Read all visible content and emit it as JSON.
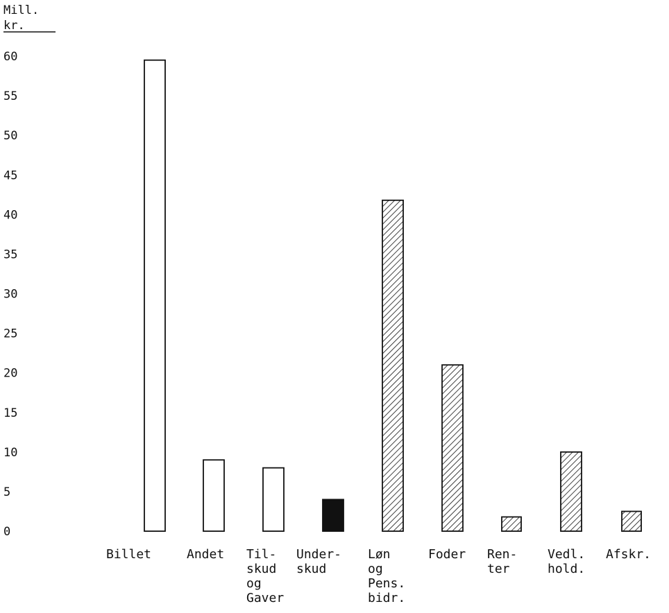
{
  "chart_data": {
    "type": "bar",
    "ylabel": [
      "Mill.",
      "kr."
    ],
    "ylim": [
      0,
      60
    ],
    "yticks": [
      0,
      5,
      10,
      15,
      20,
      25,
      30,
      35,
      40,
      45,
      50,
      55,
      60
    ],
    "grid": false,
    "categories": [
      {
        "lines": [
          "Billet"
        ],
        "value": 59.5,
        "fill": "white"
      },
      {
        "lines": [
          "Andet"
        ],
        "value": 9.0,
        "fill": "white"
      },
      {
        "lines": [
          "Til-",
          "skud",
          "og",
          "Gaver"
        ],
        "value": 8.0,
        "fill": "white"
      },
      {
        "lines": [
          "Under-",
          "skud"
        ],
        "value": 4.0,
        "fill": "black"
      },
      {
        "lines": [
          "Løn",
          "og",
          "Pens.",
          "bidr."
        ],
        "value": 41.8,
        "fill": "hatched"
      },
      {
        "lines": [
          "Foder"
        ],
        "value": 21.0,
        "fill": "hatched"
      },
      {
        "lines": [
          "Ren-",
          "ter"
        ],
        "value": 1.8,
        "fill": "hatched"
      },
      {
        "lines": [
          "Vedl.",
          "hold."
        ],
        "value": 10.0,
        "fill": "hatched"
      },
      {
        "lines": [
          "Afskr."
        ],
        "value": 2.5,
        "fill": "hatched"
      }
    ]
  },
  "colors": {
    "ink": "#111111",
    "background": "#ffffff"
  }
}
